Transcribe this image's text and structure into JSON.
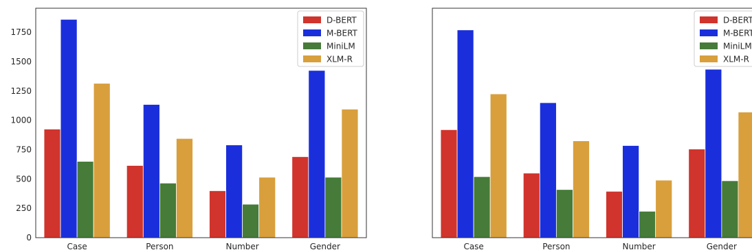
{
  "chart_data": [
    {
      "type": "bar",
      "categories": [
        "Case",
        "Person",
        "Number",
        "Gender"
      ],
      "series": [
        {
          "name": "D-BERT",
          "color": "#d0342c",
          "values": [
            925,
            615,
            400,
            690
          ]
        },
        {
          "name": "M-BERT",
          "color": "#1a2fdb",
          "values": [
            1860,
            1135,
            790,
            1425
          ]
        },
        {
          "name": "MiniLM",
          "color": "#467b39",
          "values": [
            650,
            465,
            285,
            515
          ]
        },
        {
          "name": "XLM-R",
          "color": "#d89f3c",
          "values": [
            1315,
            845,
            515,
            1095
          ]
        }
      ],
      "yticks": [
        0,
        250,
        500,
        750,
        1000,
        1250,
        1500,
        1750
      ],
      "ylim": [
        0,
        1955
      ],
      "grid": false,
      "legend": "top-right",
      "show_yticks": true
    },
    {
      "type": "bar",
      "categories": [
        "Case",
        "Person",
        "Number",
        "Gender"
      ],
      "series": [
        {
          "name": "D-BERT",
          "color": "#d0342c",
          "values": [
            920,
            550,
            395,
            755
          ]
        },
        {
          "name": "M-BERT",
          "color": "#1a2fdb",
          "values": [
            1770,
            1150,
            785,
            1435
          ]
        },
        {
          "name": "MiniLM",
          "color": "#467b39",
          "values": [
            520,
            410,
            225,
            485
          ]
        },
        {
          "name": "XLM-R",
          "color": "#d89f3c",
          "values": [
            1225,
            825,
            490,
            1070
          ]
        }
      ],
      "yticks": [
        0,
        250,
        500,
        750,
        1000,
        1250,
        1500,
        1750
      ],
      "ylim": [
        0,
        1955
      ],
      "grid": false,
      "legend": "top-right",
      "show_yticks": false
    }
  ]
}
